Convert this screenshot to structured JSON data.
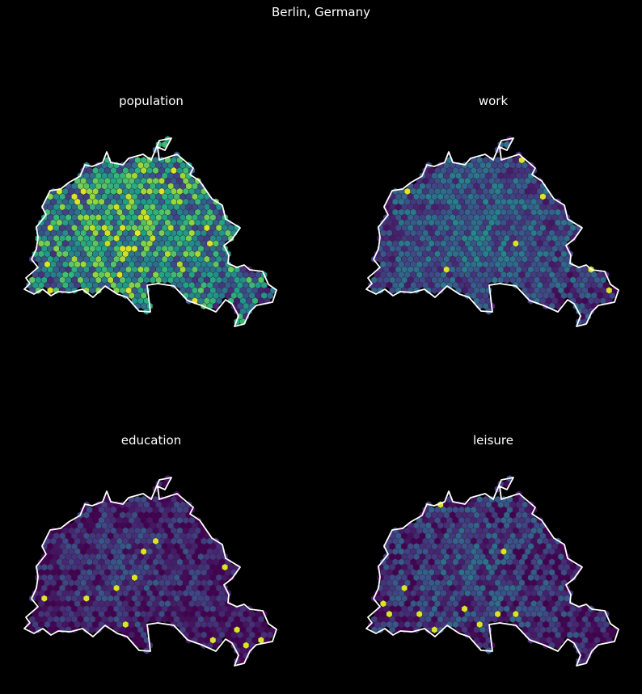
{
  "title": "Berlin, Germany",
  "colormap": "viridis",
  "background_color": "#000000",
  "boundary_color": "#ffffff",
  "panels": [
    {
      "title": "population",
      "base_level": 0.45,
      "variance": 0.35,
      "hotspot_level": 0.95
    },
    {
      "title": "work",
      "base_level": 0.2,
      "variance": 0.18,
      "hotspot_level": 0.95
    },
    {
      "title": "education",
      "base_level": 0.05,
      "variance": 0.15,
      "hotspot_level": 0.95
    },
    {
      "title": "leisure",
      "base_level": 0.1,
      "variance": 0.18,
      "hotspot_level": 0.95
    }
  ]
}
